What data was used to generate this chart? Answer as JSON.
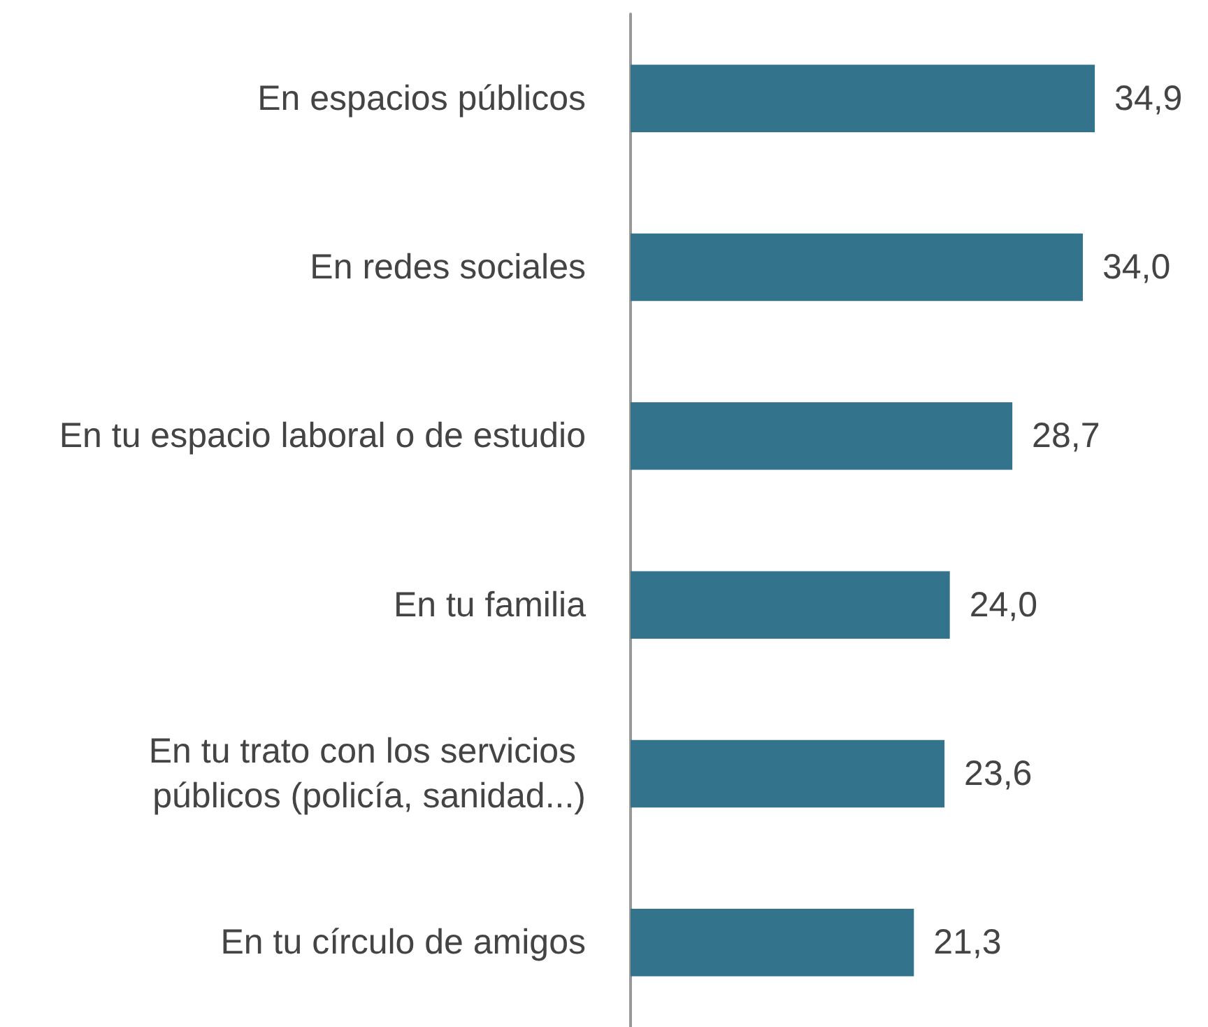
{
  "chart_data": {
    "type": "bar",
    "orientation": "horizontal",
    "categories": [
      "En espacios públicos",
      "En redes sociales",
      "En tu espacio laboral o de estudio",
      "En tu familia",
      "En tu trato con los servicios públicos (policía, sanidad...)",
      "En tu círculo de amigos"
    ],
    "values": [
      34.9,
      34.0,
      28.7,
      24.0,
      23.6,
      21.3
    ],
    "value_labels": [
      "34,9",
      "34,0",
      "28,7",
      "24,0",
      "23,6",
      "21,3"
    ],
    "color": "#33738c",
    "grid": false
  }
}
